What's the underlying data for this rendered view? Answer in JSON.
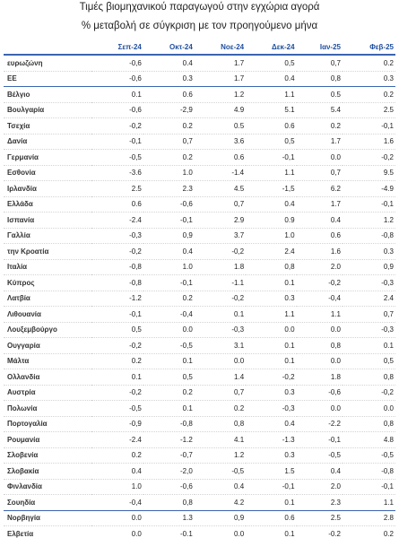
{
  "header": {
    "title": "Τιμές βιομηχανικού παραγωγού στην εγχώρια αγορά",
    "subtitle": "% μεταβολή σε σύγκριση με τον προηγούμενο μήνα"
  },
  "table": {
    "columns": [
      "Σεπ-24",
      "Οκτ-24",
      "Νοε-24",
      "Δεκ-24",
      "Ιαν-25",
      "Φεβ-25"
    ],
    "rows": [
      [
        "ευρωζώνη",
        "-0,6",
        "0.4",
        "1.7",
        "0,5",
        "0,7",
        "0.2"
      ],
      [
        "ΕΕ",
        "-0,6",
        "0.3",
        "1.7",
        "0.4",
        "0,8",
        "0.3"
      ],
      [
        "Βέλγιο",
        "0.1",
        "0.6",
        "1.2",
        "1.1",
        "0.5",
        "0.2"
      ],
      [
        "Βουλγαρία",
        "-0,6",
        "-2,9",
        "4.9",
        "5.1",
        "5.4",
        "2.5"
      ],
      [
        "Τσεχία",
        "-0,2",
        "0.2",
        "0.5",
        "0.6",
        "0.2",
        "-0,1"
      ],
      [
        "Δανία",
        "-0,1",
        "0,7",
        "3.6",
        "0,5",
        "1.7",
        "1.6"
      ],
      [
        "Γερμανία",
        "-0,5",
        "0.2",
        "0.6",
        "-0,1",
        "0.0",
        "-0,2"
      ],
      [
        "Εσθονία",
        "-3.6",
        "1.0",
        "-1.4",
        "1.1",
        "0,7",
        "9.5"
      ],
      [
        "Ιρλανδία",
        "2.5",
        "2.3",
        "4.5",
        "-1,5",
        "6.2",
        "-4.9"
      ],
      [
        "Ελλάδα",
        "0.6",
        "-0,6",
        "0,7",
        "0.4",
        "1.7",
        "-0,1"
      ],
      [
        "Ισπανία",
        "-2.4",
        "-0,1",
        "2.9",
        "0.9",
        "0.4",
        "1.2"
      ],
      [
        "Γαλλία",
        "-0,3",
        "0,9",
        "3.7",
        "1.0",
        "0.6",
        "-0,8"
      ],
      [
        "την Κροατία",
        "-0,2",
        "0.4",
        "-0,2",
        "2.4",
        "1.6",
        "0.3"
      ],
      [
        "Ιταλία",
        "-0,8",
        "1.0",
        "1.8",
        "0,8",
        "2.0",
        "0,9"
      ],
      [
        "Κύπρος",
        "-0,8",
        "-0,1",
        "-1.1",
        "0.1",
        "-0,2",
        "-0,3"
      ],
      [
        "Λατβία",
        "-1.2",
        "0.2",
        "-0,2",
        "0.3",
        "-0,4",
        "2.4"
      ],
      [
        "Λιθουανία",
        "-0,1",
        "-0,4",
        "0.1",
        "1.1",
        "1.1",
        "0,7"
      ],
      [
        "Λουξεμβούργο",
        "0,5",
        "0.0",
        "-0,3",
        "0.0",
        "0.0",
        "-0,3"
      ],
      [
        "Ουγγαρία",
        "-0,2",
        "-0,5",
        "3.1",
        "0.1",
        "0,8",
        "0.1"
      ],
      [
        "Μάλτα",
        "0.2",
        "0.1",
        "0.0",
        "0.1",
        "0.0",
        "0,5"
      ],
      [
        "Ολλανδία",
        "0.1",
        "0,5",
        "1.4",
        "-0,2",
        "1.8",
        "0,8"
      ],
      [
        "Αυστρία",
        "-0,2",
        "0.2",
        "0,7",
        "0.3",
        "-0,6",
        "-0,2"
      ],
      [
        "Πολωνία",
        "-0,5",
        "0.1",
        "0.2",
        "-0,3",
        "0.0",
        "0.0"
      ],
      [
        "Πορτογαλία",
        "-0,9",
        "-0,8",
        "0,8",
        "0.4",
        "-2.2",
        "0,8"
      ],
      [
        "Ρουμανία",
        "-2.4",
        "-1.2",
        "4.1",
        "-1.3",
        "-0,1",
        "4.8"
      ],
      [
        "Σλοβενία",
        "0.2",
        "-0,7",
        "1.2",
        "0.3",
        "-0,5",
        "-0,5"
      ],
      [
        "Σλοβακία",
        "0.4",
        "-2,0",
        "-0,5",
        "1.5",
        "0.4",
        "-0,8"
      ],
      [
        "Φινλανδία",
        "1.0",
        "-0,6",
        "0.4",
        "-0,1",
        "2.0",
        "-0,1"
      ],
      [
        "Σουηδία",
        "-0,4",
        "0,8",
        "4.2",
        "0.1",
        "2.3",
        "1.1"
      ],
      [
        "Νορβηγία",
        "0.0",
        "1.3",
        "0,9",
        "0.6",
        "2.5",
        "2.8"
      ],
      [
        "Ελβετία",
        "0.0",
        "-0.1",
        "0.0",
        "0.1",
        "-0.2",
        "0.2"
      ]
    ]
  }
}
